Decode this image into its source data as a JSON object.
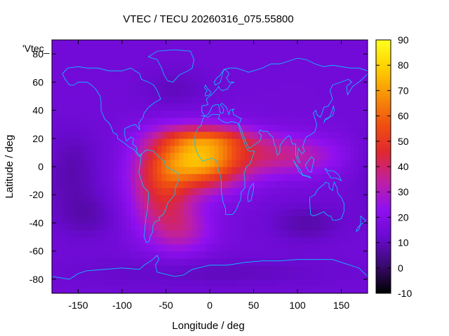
{
  "chart_data": {
    "type": "heatmap",
    "title": "VTEC / TECU 20260316_075.55800",
    "xlabel": "Longitude / deg",
    "ylabel": "Latitude / deg",
    "overlay_label": "'Vtec_",
    "xlim": [
      -180,
      180
    ],
    "ylim": [
      -90,
      90
    ],
    "xticks": [
      -150,
      -100,
      -50,
      0,
      50,
      100,
      150
    ],
    "yticks": [
      -80,
      -60,
      -40,
      -20,
      0,
      20,
      40,
      60,
      80
    ],
    "colorbar": {
      "range": [
        -10,
        90
      ],
      "ticks": [
        -10,
        0,
        10,
        20,
        30,
        40,
        50,
        60,
        70,
        80,
        90
      ],
      "palette": [
        "#000000",
        "#3a0a70",
        "#6a0ad0",
        "#9010f0",
        "#c020a0",
        "#e02830",
        "#f05010",
        "#f89008",
        "#ffd000",
        "#ffff20"
      ]
    },
    "field": {
      "background_tecu": 15,
      "grid_deg": 5,
      "features": [
        {
          "name": "equatorial crest Africa/Atlantic",
          "lon": -10,
          "lat": 5,
          "amp_tecu": 55,
          "sigma_lon": 35,
          "sigma_lat": 14
        },
        {
          "name": "south america anomaly",
          "lon": -55,
          "lat": -15,
          "amp_tecu": 28,
          "sigma_lon": 25,
          "sigma_lat": 22
        },
        {
          "name": "indian ocean extension",
          "lon": 85,
          "lat": 8,
          "amp_tecu": 20,
          "sigma_lon": 45,
          "sigma_lat": 10
        },
        {
          "name": "northern crest",
          "lon": 0,
          "lat": 20,
          "amp_tecu": 18,
          "sigma_lon": 40,
          "sigma_lat": 6
        },
        {
          "name": "southern patch",
          "lon": -30,
          "lat": -45,
          "amp_tecu": 14,
          "sigma_lon": 25,
          "sigma_lat": 12
        },
        {
          "name": "pacific depletion",
          "lon": -160,
          "lat": 0,
          "amp_tecu": -7,
          "sigma_lon": 25,
          "sigma_lat": 20
        },
        {
          "name": "south pacific depletion",
          "lon": -140,
          "lat": -35,
          "amp_tecu": -6,
          "sigma_lon": 25,
          "sigma_lat": 12
        },
        {
          "name": "south indian depletion",
          "lon": 110,
          "lat": -40,
          "amp_tecu": -7,
          "sigma_lon": 30,
          "sigma_lat": 10
        },
        {
          "name": "north atlantic depletion",
          "lon": -40,
          "lat": 55,
          "amp_tecu": -5,
          "sigma_lon": 30,
          "sigma_lat": 12
        },
        {
          "name": "high south depletion",
          "lon": 0,
          "lat": -75,
          "amp_tecu": -5,
          "sigma_lon": 120,
          "sigma_lat": 8
        }
      ]
    },
    "coastline_color": "#00ccff"
  }
}
